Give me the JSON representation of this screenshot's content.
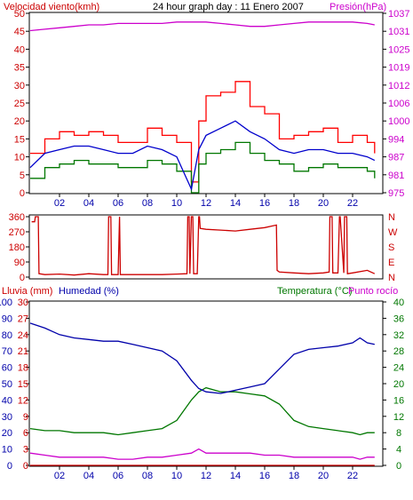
{
  "colors": {
    "wind": "#cc0000",
    "gust": "#ff0000",
    "avg": "#0000cc",
    "wind_low": "#007700",
    "pressure": "#cc00cc",
    "direction": "#cc0000",
    "rain": "#cc0000",
    "humidity": "#0000aa",
    "temperature": "#007700",
    "dewpoint": "#cc00cc",
    "axis_blue": "#0000aa",
    "axis_black": "#000000"
  },
  "title": {
    "left": "Velocidad viento(kmh)",
    "center": "24 hour graph day : 11 Enero 2007",
    "right": "Presión(hPa)"
  },
  "panel3_header": {
    "rain": "Lluvia (mm)",
    "humidity": "Humedad (%)",
    "temperature": "Temperatura (°C)",
    "dewpoint": "Punto rocío"
  },
  "x_ticks": [
    "02",
    "04",
    "06",
    "08",
    "10",
    "12",
    "14",
    "16",
    "18",
    "20",
    "22"
  ],
  "chart_data": [
    {
      "type": "line",
      "name": "wind",
      "x_range": [
        0,
        24
      ],
      "ylim": [
        0,
        50
      ],
      "y_ticks": [
        "0",
        "5",
        "10",
        "15",
        "20",
        "25",
        "30",
        "35",
        "40",
        "45",
        "50"
      ],
      "y2lim": [
        975,
        1037
      ],
      "y2_ticks": [
        "975",
        "981",
        "987",
        "994",
        "1000",
        "1006",
        "1012",
        "1019",
        "1025",
        "1031",
        "1037"
      ],
      "x": [
        0,
        1,
        2,
        3,
        4,
        5,
        6,
        7,
        8,
        9,
        10,
        11,
        11.5,
        12,
        13,
        14,
        15,
        16,
        17,
        18,
        19,
        20,
        21,
        22,
        23,
        23.5
      ],
      "series": [
        {
          "name": "gust",
          "values": [
            11,
            15,
            17,
            16,
            17,
            16,
            14,
            14,
            18,
            16,
            14,
            3,
            20,
            27,
            28,
            31,
            24,
            22,
            15,
            16,
            17,
            18,
            14,
            16,
            14,
            11
          ]
        },
        {
          "name": "avg",
          "values": [
            7,
            11,
            12,
            13,
            13,
            12,
            11,
            11,
            13,
            12,
            10,
            1,
            12,
            16,
            18,
            20,
            17,
            15,
            12,
            11,
            12,
            12,
            11,
            11,
            10,
            9
          ]
        },
        {
          "name": "low",
          "values": [
            4,
            7,
            8,
            9,
            8,
            8,
            7,
            7,
            9,
            8,
            6,
            0,
            8,
            11,
            12,
            14,
            11,
            9,
            8,
            6,
            7,
            8,
            7,
            7,
            6,
            4
          ]
        },
        {
          "name": "pressure",
          "values": [
            1031,
            1031.5,
            1032,
            1032.5,
            1033,
            1033,
            1033.5,
            1033.5,
            1033.5,
            1033.5,
            1034,
            1034,
            1034,
            1034,
            1033.5,
            1033,
            1032.5,
            1032.5,
            1033,
            1033.5,
            1034,
            1034,
            1034,
            1034,
            1033.5,
            1033
          ]
        }
      ]
    },
    {
      "type": "line",
      "name": "wind direction",
      "x_range": [
        0,
        24
      ],
      "ylim": [
        0,
        360
      ],
      "y_ticks": [
        "0",
        "90",
        "180",
        "270",
        "360"
      ],
      "y2_ticks": [
        "N",
        "E",
        "S",
        "W",
        "N"
      ],
      "x": [
        0.1,
        0.3,
        0.35,
        0.55,
        0.6,
        1,
        2,
        3,
        4,
        5,
        5.3,
        5.35,
        5.5,
        5.55,
        6,
        6.1,
        6.15,
        7,
        8,
        9,
        10,
        10.7,
        10.75,
        10.85,
        10.9,
        11,
        11.1,
        11.15,
        11.4,
        11.5,
        11.55,
        11.6,
        12,
        13,
        14,
        15,
        16,
        16.8,
        16.85,
        17,
        18,
        19,
        20,
        20.4,
        20.45,
        20.6,
        20.65,
        21,
        21.1,
        21.15,
        21.4,
        21.45,
        21.6,
        21.65,
        22,
        23,
        23.5
      ],
      "series": [
        {
          "name": "direction",
          "values": [
            330,
            330,
            360,
            360,
            20,
            15,
            18,
            12,
            20,
            15,
            15,
            360,
            360,
            15,
            15,
            360,
            15,
            15,
            15,
            15,
            18,
            20,
            360,
            360,
            20,
            360,
            360,
            20,
            20,
            360,
            360,
            290,
            285,
            280,
            275,
            285,
            295,
            310,
            40,
            30,
            25,
            20,
            25,
            30,
            360,
            360,
            25,
            25,
            360,
            360,
            25,
            360,
            360,
            20,
            25,
            40,
            20
          ]
        }
      ]
    },
    {
      "type": "line",
      "name": "humidity / temperature",
      "x_range": [
        0,
        24
      ],
      "rain_ylim": [
        0,
        30
      ],
      "rain_ticks": [
        "0",
        "3",
        "6",
        "9",
        "12",
        "15",
        "18",
        "21",
        "24",
        "27",
        "30"
      ],
      "humidity_ylim": [
        0,
        100
      ],
      "humidity_ticks": [
        "0",
        "10",
        "20",
        "30",
        "40",
        "50",
        "60",
        "70",
        "80",
        "90",
        "100"
      ],
      "temp_ylim": [
        0,
        40
      ],
      "temp_ticks": [
        "0",
        "4",
        "8",
        "12",
        "16",
        "20",
        "24",
        "28",
        "32",
        "36",
        "40"
      ],
      "x": [
        0,
        1,
        2,
        3,
        4,
        5,
        6,
        7,
        8,
        9,
        10,
        11,
        11.5,
        12,
        13,
        14,
        15,
        16,
        17,
        18,
        19,
        20,
        21,
        22,
        22.5,
        23,
        23.5
      ],
      "series": [
        {
          "name": "humidity",
          "values": [
            87,
            84,
            80,
            78,
            77,
            76,
            76,
            74,
            72,
            70,
            64,
            52,
            47,
            45,
            44,
            46,
            48,
            50,
            59,
            68,
            71,
            72,
            73,
            75,
            78,
            75,
            74
          ]
        },
        {
          "name": "temperature",
          "values": [
            9,
            8.5,
            8.5,
            8,
            8,
            8,
            7.5,
            8,
            8.5,
            9,
            11,
            16,
            18,
            19,
            18,
            18,
            17.5,
            17,
            15,
            11,
            9.5,
            9,
            8.5,
            8,
            7.5,
            8,
            8
          ]
        },
        {
          "name": "dewpoint",
          "values": [
            3,
            2.5,
            2,
            2,
            2,
            2,
            1.5,
            1.5,
            2,
            2,
            2.5,
            3,
            4,
            3,
            3,
            3,
            3,
            2.5,
            2.5,
            2,
            2,
            2,
            2,
            2,
            1.5,
            2,
            2
          ]
        },
        {
          "name": "rain",
          "values": [
            0,
            0,
            0,
            0,
            0,
            0,
            0,
            0,
            0,
            0,
            0,
            0,
            0,
            0,
            0,
            0,
            0,
            0,
            0,
            0,
            0,
            0,
            0,
            0,
            0,
            0,
            0
          ]
        }
      ]
    }
  ]
}
